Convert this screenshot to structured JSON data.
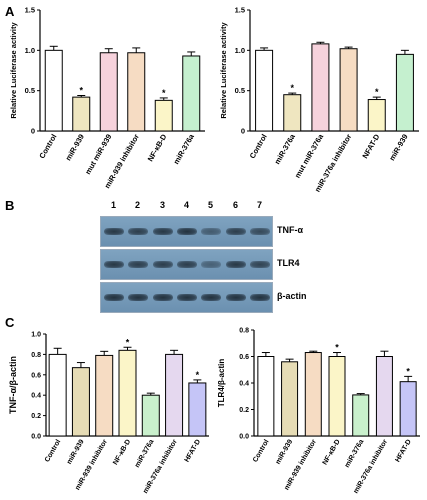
{
  "panels": {
    "A": "A",
    "B": "B",
    "C": "C"
  },
  "chart_data": [
    {
      "id": "A1",
      "type": "bar",
      "ylabel": "Relative Luciferase activity",
      "ylim": [
        0,
        1.5
      ],
      "yticks": [
        0,
        0.5,
        1.0,
        1.5
      ],
      "categories": [
        "Control",
        "miR-939",
        "mut miR-939",
        "miR-939 inhibitor",
        "NF-κB-D",
        "miR-376a"
      ],
      "values": [
        1.0,
        0.42,
        0.97,
        0.97,
        0.38,
        0.93
      ],
      "errors": [
        0.05,
        0.02,
        0.05,
        0.06,
        0.03,
        0.05
      ],
      "significance": [
        "",
        "*",
        "",
        "",
        "*",
        ""
      ],
      "colors": [
        "#ffffff",
        "#efe6c0",
        "#f6d2dc",
        "#f6dcc3",
        "#fbf5c8",
        "#c5f0cf"
      ]
    },
    {
      "id": "A2",
      "type": "bar",
      "ylabel": "Relative Luciferase activity",
      "ylim": [
        0,
        1.5
      ],
      "yticks": [
        0,
        0.5,
        1.0,
        1.5
      ],
      "categories": [
        "Control",
        "miR-376a",
        "mut miR-376a",
        "miR-376a inhibitor",
        "NFAT-D",
        "miR-939"
      ],
      "values": [
        1.0,
        0.45,
        1.08,
        1.02,
        0.39,
        0.95
      ],
      "errors": [
        0.03,
        0.02,
        0.02,
        0.02,
        0.03,
        0.05
      ],
      "significance": [
        "",
        "*",
        "",
        "",
        "*",
        ""
      ],
      "colors": [
        "#ffffff",
        "#efe6c0",
        "#f6d2dc",
        "#f6dcc3",
        "#fbf5c8",
        "#c5f0cf"
      ]
    },
    {
      "id": "C1",
      "type": "bar",
      "ylabel": "TNF-α/β-actin",
      "ylim": [
        0,
        1.0
      ],
      "yticks": [
        0.0,
        0.2,
        0.4,
        0.6,
        0.8,
        1.0
      ],
      "categories": [
        "Control",
        "miR-939",
        "miR-939 inhibitor",
        "NF-κB-D",
        "miR-376a",
        "miR-376a inhibitor",
        "HFAT-D"
      ],
      "values": [
        0.8,
        0.67,
        0.79,
        0.84,
        0.4,
        0.8,
        0.52
      ],
      "errors": [
        0.06,
        0.05,
        0.04,
        0.03,
        0.02,
        0.04,
        0.03
      ],
      "significance": [
        "",
        "",
        "",
        "*",
        "",
        "",
        "*"
      ],
      "colors": [
        "#ffffff",
        "#e6dcb5",
        "#f6dcc3",
        "#fbf5c8",
        "#c9f0cc",
        "#e5d8ef",
        "#c5c5f7"
      ]
    },
    {
      "id": "C2",
      "type": "bar",
      "ylabel": "TLR4/β-actin",
      "ylim": [
        0,
        0.8
      ],
      "yticks": [
        0.0,
        0.2,
        0.4,
        0.6,
        0.8
      ],
      "categories": [
        "Control",
        "miR-939",
        "miR-939 inhibitor",
        "NF-κB-D",
        "miR-376a",
        "miR-376a inhibitor",
        "HFAT-D"
      ],
      "values": [
        0.6,
        0.56,
        0.63,
        0.6,
        0.31,
        0.6,
        0.41
      ],
      "errors": [
        0.03,
        0.02,
        0.01,
        0.03,
        0.01,
        0.04,
        0.04
      ],
      "significance": [
        "",
        "",
        "",
        "*",
        "",
        "",
        "*"
      ],
      "colors": [
        "#ffffff",
        "#e6dcb5",
        "#f6dcc3",
        "#fbf5c8",
        "#c9f0cc",
        "#e5d8ef",
        "#c5c5f7"
      ]
    }
  ],
  "blot": {
    "lanes": [
      "1",
      "2",
      "3",
      "4",
      "5",
      "6",
      "7"
    ],
    "rows": [
      {
        "label": "TNF-α",
        "intensity": [
          0.85,
          0.8,
          0.85,
          0.9,
          0.55,
          0.8,
          0.7
        ]
      },
      {
        "label": "TLR4",
        "intensity": [
          0.85,
          0.8,
          0.8,
          0.8,
          0.5,
          0.85,
          0.75
        ]
      },
      {
        "label": "β-actin",
        "intensity": [
          0.9,
          0.9,
          0.9,
          0.9,
          0.9,
          0.9,
          0.9
        ]
      }
    ]
  }
}
